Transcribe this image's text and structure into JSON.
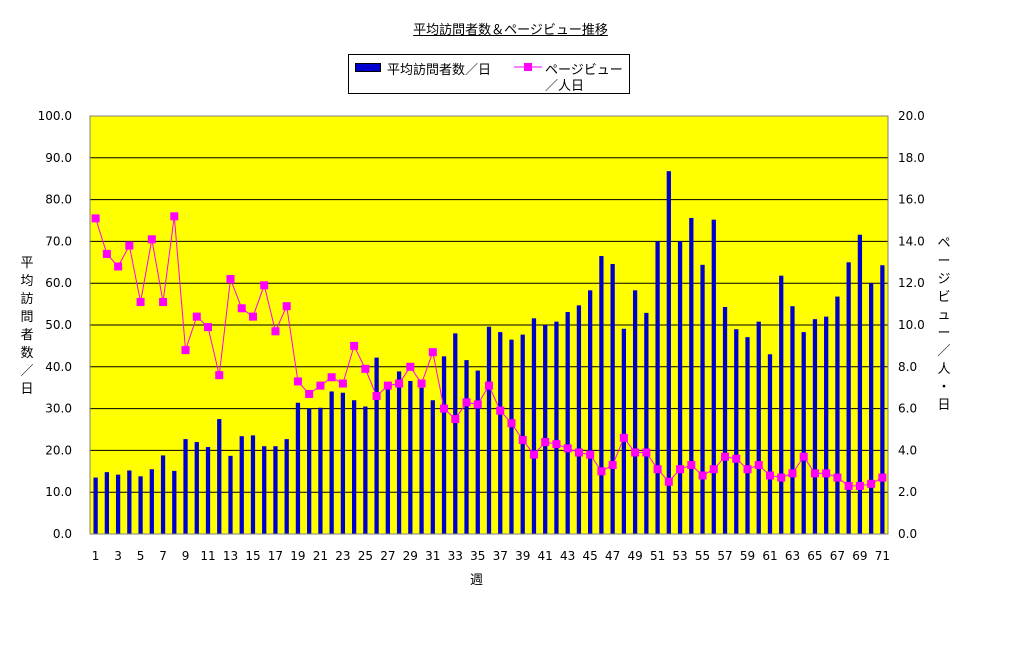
{
  "chart_data": {
    "type": "bar",
    "title": "平均訪問者数＆ページビュー推移",
    "xlabel": "週",
    "ylabel_left": "平均訪問者数／日",
    "ylabel_right": "ページビュー／人・日",
    "legend": {
      "placement": "top-center",
      "bar_label": "平均訪問者数／日",
      "line_label_line1": "ページビュー",
      "line_label_line2": "／人日"
    },
    "ylim_left": [
      0,
      100
    ],
    "ylim_right": [
      0,
      20
    ],
    "yticks_left": [
      "0.0",
      "10.0",
      "20.0",
      "30.0",
      "40.0",
      "50.0",
      "60.0",
      "70.0",
      "80.0",
      "90.0",
      "100.0"
    ],
    "yticks_right": [
      "0.0",
      "2.0",
      "4.0",
      "6.0",
      "8.0",
      "10.0",
      "12.0",
      "14.0",
      "16.0",
      "18.0",
      "20.0"
    ],
    "grid": true,
    "plot_background": "#ffff00",
    "bar_color": "#0000cc",
    "line_color": "#ff00ff",
    "categories": [
      1,
      2,
      3,
      4,
      5,
      6,
      7,
      8,
      9,
      10,
      11,
      12,
      13,
      14,
      15,
      16,
      17,
      18,
      19,
      20,
      21,
      22,
      23,
      24,
      25,
      26,
      27,
      28,
      29,
      30,
      31,
      32,
      33,
      34,
      35,
      36,
      37,
      38,
      39,
      40,
      41,
      42,
      43,
      44,
      45,
      46,
      47,
      48,
      49,
      50,
      51,
      52,
      53,
      54,
      55,
      56,
      57,
      58,
      59,
      60,
      61,
      62,
      63,
      64,
      65,
      66,
      67,
      68,
      69,
      70,
      71
    ],
    "series": [
      {
        "name": "平均訪問者数／日",
        "type": "bar",
        "axis": "left",
        "values": [
          13.5,
          14.8,
          14.2,
          15.2,
          13.8,
          15.5,
          18.8,
          15.1,
          22.7,
          22.0,
          20.8,
          27.5,
          18.7,
          23.4,
          23.6,
          21.0,
          21.0,
          22.7,
          31.4,
          30.0,
          30.2,
          34.1,
          33.8,
          32.0,
          30.5,
          42.2,
          35.0,
          38.9,
          36.6,
          35.0,
          32.0,
          42.5,
          48.0,
          41.6,
          39.1,
          49.6,
          48.3,
          46.5,
          47.7,
          51.6,
          50.0,
          50.8,
          53.1,
          54.7,
          58.3,
          66.5,
          64.6,
          49.1,
          58.3,
          52.9,
          70.0,
          86.8,
          70.0,
          75.6,
          64.4,
          75.2,
          54.3,
          49.0,
          47.1,
          50.8,
          43.0,
          61.8,
          54.5,
          48.3,
          51.4,
          52.0,
          56.8,
          65.0,
          71.6,
          60.0,
          64.3
        ]
      },
      {
        "name": "ページビュー／人日",
        "type": "line",
        "axis": "right",
        "values": [
          15.1,
          13.4,
          12.8,
          13.8,
          11.1,
          14.1,
          11.1,
          15.2,
          8.8,
          10.4,
          9.9,
          7.6,
          12.2,
          10.8,
          10.4,
          11.9,
          9.7,
          10.9,
          7.3,
          6.7,
          7.1,
          7.5,
          7.2,
          9.0,
          7.9,
          6.6,
          7.1,
          7.2,
          8.0,
          7.2,
          8.7,
          6.0,
          5.5,
          6.3,
          6.2,
          7.1,
          5.9,
          5.3,
          4.5,
          3.8,
          4.4,
          4.3,
          4.1,
          3.9,
          3.8,
          3.0,
          3.3,
          4.6,
          3.9,
          3.9,
          3.1,
          2.5,
          3.1,
          3.3,
          2.8,
          3.1,
          3.7,
          3.6,
          3.1,
          3.3,
          2.8,
          2.7,
          2.9,
          3.7,
          2.9,
          2.9,
          2.7,
          2.3,
          2.3,
          2.4,
          2.7
        ]
      }
    ]
  }
}
